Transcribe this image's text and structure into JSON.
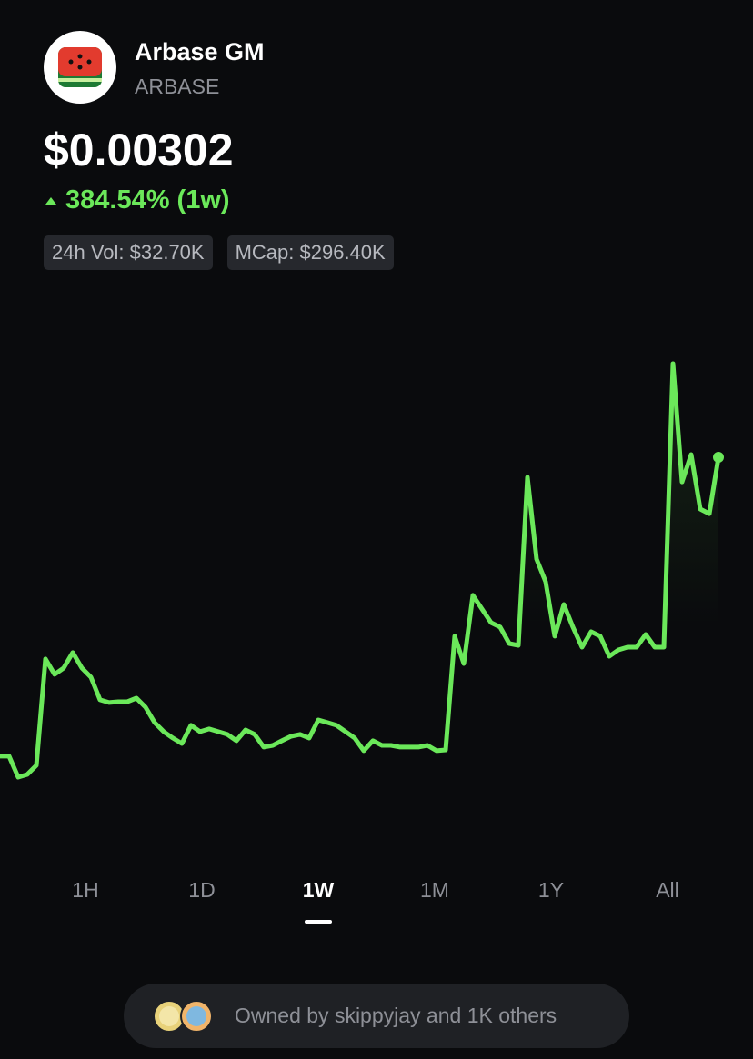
{
  "header": {
    "name": "Arbase GM",
    "symbol": "ARBASE"
  },
  "price": "$0.00302",
  "change": "384.54% (1w)",
  "stats": [
    "24h Vol: $32.70K",
    "MCap: $296.40K"
  ],
  "chart_data": {
    "type": "line",
    "color": "#6be85a",
    "values": [
      0.000623,
      0.000623,
      0.000455,
      0.000477,
      0.00055,
      0.001403,
      0.001279,
      0.00133,
      0.001454,
      0.00133,
      0.001257,
      0.001075,
      0.001053,
      0.00106,
      0.00106,
      0.001089,
      0.001016,
      0.000893,
      0.00082,
      0.000769,
      0.000725,
      0.000871,
      0.00082,
      0.000842,
      0.00082,
      0.000798,
      0.000747,
      0.000834,
      0.000798,
      0.000696,
      0.00071,
      0.000747,
      0.000783,
      0.000798,
      0.000769,
      0.000914,
      0.000893,
      0.000871,
      0.00082,
      0.000769,
      0.000667,
      0.000747,
      0.00071,
      0.00071,
      0.000696,
      0.000696,
      0.000696,
      0.00071,
      0.000667,
      0.000674,
      0.001585,
      0.001366,
      0.001913,
      0.001803,
      0.001694,
      0.001658,
      0.001526,
      0.001512,
      0.00286,
      0.002204,
      0.002022,
      0.001585,
      0.00184,
      0.001658,
      0.001497,
      0.001621,
      0.001585,
      0.001424,
      0.001475,
      0.001497,
      0.001497,
      0.001599,
      0.001497,
      0.001497,
      0.003771,
      0.002823,
      0.003042,
      0.002605,
      0.002568,
      0.00302
    ]
  },
  "timeframes": {
    "options": [
      "1H",
      "1D",
      "1W",
      "1M",
      "1Y",
      "All"
    ],
    "selected": 2
  },
  "owners": "Owned by skippyjay and 1K others"
}
